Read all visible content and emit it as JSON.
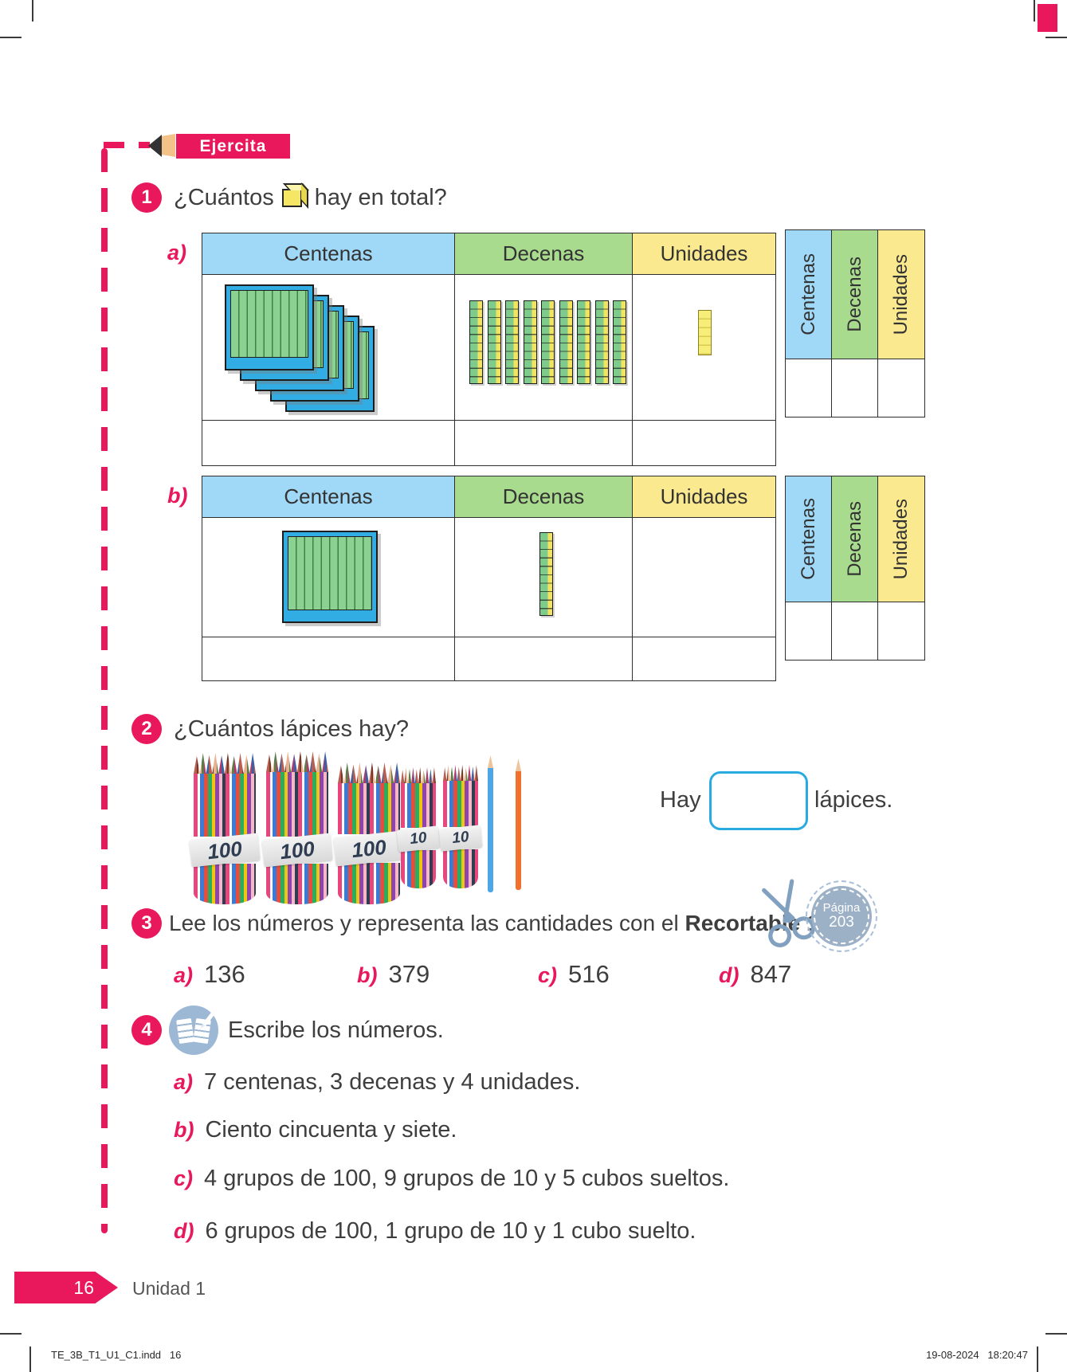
{
  "header": {
    "badge_label": "Ejercita"
  },
  "colors": {
    "accent_pink": "#e9185c",
    "centenas_blue": "#a0d9f7",
    "decenas_green": "#a9db8e",
    "unidades_yellow": "#fae98e",
    "answer_box_border": "#29abe2",
    "icon_blue_gray": "#9cb0c6"
  },
  "exercise1": {
    "number": "1",
    "question_prefix": "¿Cuántos",
    "question_suffix": "hay en total?",
    "column_headers": [
      "Centenas",
      "Decenas",
      "Unidades"
    ],
    "items": [
      {
        "label": "a)",
        "hundreds": 5,
        "tens": 9,
        "units": 5
      },
      {
        "label": "b)",
        "hundreds": 1,
        "tens": 1,
        "units": 0
      }
    ]
  },
  "exercise2": {
    "number": "2",
    "question": "¿Cuántos lápices hay?",
    "bundles": [
      {
        "label": "100"
      },
      {
        "label": "100"
      },
      {
        "label": "100"
      },
      {
        "label": "10"
      },
      {
        "label": "10"
      }
    ],
    "loose_pencil_colors": [
      "#4da6e8",
      "#f2702e"
    ],
    "answer_prefix": "Hay",
    "answer_suffix": "lápices."
  },
  "exercise3": {
    "number": "3",
    "instruction_regular": "Lee los números y representa las cantidades con el ",
    "instruction_bold": "Recortable 1",
    "instruction_end": ".",
    "page_badge": {
      "line1": "Página",
      "line2": "203"
    },
    "options": [
      {
        "label": "a)",
        "value": "136"
      },
      {
        "label": "b)",
        "value": "379"
      },
      {
        "label": "c)",
        "value": "516"
      },
      {
        "label": "d)",
        "value": "847"
      }
    ]
  },
  "exercise4": {
    "number": "4",
    "instruction": "Escribe los números.",
    "items": [
      {
        "label": "a)",
        "text": "7 centenas, 3 decenas y 4 unidades."
      },
      {
        "label": "b)",
        "text": "Ciento cincuenta y siete."
      },
      {
        "label": "c)",
        "text": "4 grupos de 100, 9 grupos de 10 y 5 cubos sueltos."
      },
      {
        "label": "d)",
        "text": "6 grupos de 100, 1 grupo de 10 y 1 cubo suelto."
      }
    ]
  },
  "footer": {
    "page_number": "16",
    "unit_label": "Unidad 1",
    "print_slug_left": "TE_3B_T1_U1_C1.indd   16",
    "print_slug_right": "19-08-2024   18:20:47"
  }
}
